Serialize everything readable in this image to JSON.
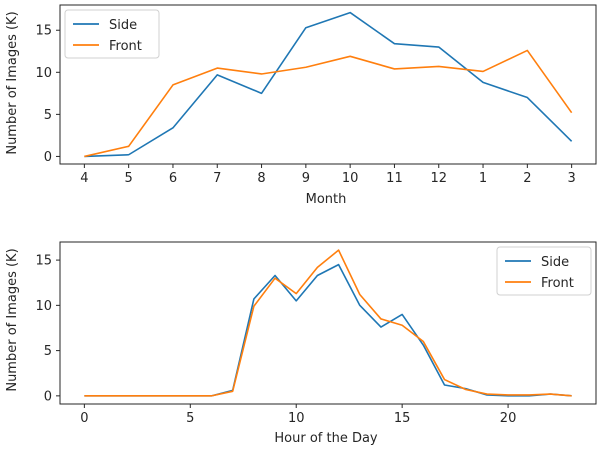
{
  "chart_data": [
    {
      "type": "line",
      "title": "",
      "xlabel": "Month",
      "ylabel": "Number of Images (K)",
      "categories": [
        "4",
        "5",
        "6",
        "7",
        "8",
        "9",
        "10",
        "11",
        "12",
        "1",
        "2",
        "3"
      ],
      "ylim": [
        -0.9,
        18.0
      ],
      "yticks": [
        0,
        5,
        10,
        15
      ],
      "grid": false,
      "legend_position": "top-left",
      "series": [
        {
          "name": "Side",
          "color": "#1f77b4",
          "values": [
            0.0,
            0.2,
            3.4,
            9.7,
            7.5,
            15.3,
            17.1,
            13.4,
            13.0,
            8.8,
            7.0,
            1.8
          ]
        },
        {
          "name": "Front",
          "color": "#ff7f0e",
          "values": [
            0.0,
            1.2,
            8.5,
            10.5,
            9.8,
            10.6,
            11.9,
            10.4,
            10.7,
            10.1,
            12.6,
            5.2
          ]
        }
      ]
    },
    {
      "type": "line",
      "title": "",
      "xlabel": "Hour of the Day",
      "ylabel": "Number of Images (K)",
      "x": [
        0,
        1,
        2,
        3,
        4,
        5,
        6,
        7,
        8,
        9,
        10,
        11,
        12,
        13,
        14,
        15,
        16,
        17,
        18,
        19,
        20,
        21,
        22,
        23
      ],
      "xlim": [
        -1.15,
        24.15
      ],
      "xticks": [
        0,
        5,
        10,
        15,
        20
      ],
      "ylim": [
        -0.9,
        17.0
      ],
      "yticks": [
        0,
        5,
        10,
        15
      ],
      "grid": false,
      "legend_position": "top-right",
      "series": [
        {
          "name": "Side",
          "color": "#1f77b4",
          "values": [
            0.0,
            0.0,
            0.0,
            0.0,
            0.0,
            0.0,
            0.0,
            0.6,
            10.7,
            13.3,
            10.5,
            13.3,
            14.5,
            10.0,
            7.6,
            9.0,
            5.6,
            1.2,
            0.8,
            0.1,
            0.0,
            0.0,
            0.2,
            0.0
          ]
        },
        {
          "name": "Front",
          "color": "#ff7f0e",
          "values": [
            0.0,
            0.0,
            0.0,
            0.0,
            0.0,
            0.0,
            0.0,
            0.5,
            9.9,
            13.0,
            11.3,
            14.2,
            16.1,
            11.2,
            8.5,
            7.8,
            6.0,
            1.8,
            0.7,
            0.2,
            0.1,
            0.1,
            0.2,
            0.0
          ]
        }
      ]
    }
  ]
}
